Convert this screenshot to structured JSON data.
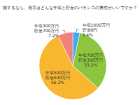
{
  "chart_data": {
    "type": "pie",
    "title": "婚するなら、相手はどんな年収と貯金のバランスの男性がいいですか？",
    "categories": [
      "年収1000万円 貯金0円",
      "年収700万円 貯金300万円",
      "年収500万円 貯金500万円",
      "年収300万円 貯金700万円"
    ],
    "values": [
      3.4,
      33.2,
      56.3,
      7.2
    ],
    "value_labels": [
      "3.4%",
      "33.2%",
      "56.3%",
      "7.2%"
    ],
    "colors": [
      "#3fa9f5",
      "#8cc63f",
      "#f7b731",
      "#f47f7f"
    ],
    "data_labels": true
  }
}
